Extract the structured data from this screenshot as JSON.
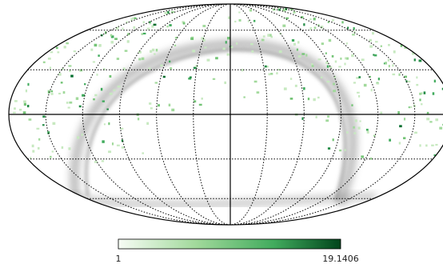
{
  "colorbar": {
    "min": 1,
    "max": 19.1406
  }
}
